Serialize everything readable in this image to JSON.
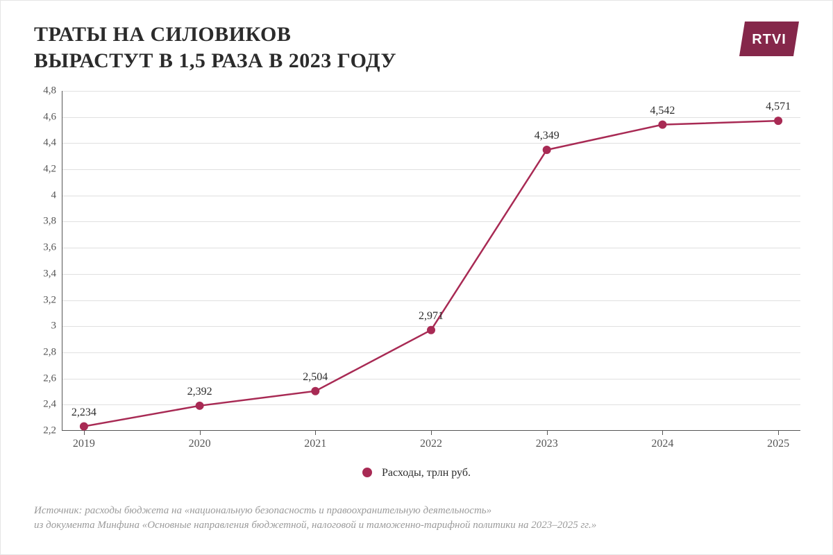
{
  "title_line1": "ТРАТЫ НА СИЛОВИКОВ",
  "title_line2": "ВЫРАСТУТ В 1,5 РАЗА В 2023 ГОДУ",
  "logo_text": "RTVI",
  "legend_label": "Расходы, трлн руб.",
  "source_line1": "Источник: расходы бюджета на «национальную безопасность и правоохранительную деятельность»",
  "source_line2": "из документа Минфина «Основные направления бюджетной, налоговой и таможенно-тарифной политики на 2023–2025 гг.»",
  "chart": {
    "type": "line",
    "categories": [
      "2019",
      "2020",
      "2021",
      "2022",
      "2023",
      "2024",
      "2025"
    ],
    "values": [
      2.234,
      2.392,
      2.504,
      2.971,
      4.349,
      4.542,
      4.571
    ],
    "value_labels": [
      "2,234",
      "2,392",
      "2,504",
      "2,971",
      "4,349",
      "4,542",
      "4,571"
    ],
    "ylim": [
      2.2,
      4.8
    ],
    "ytick_step": 0.2,
    "ytick_labels": [
      "2,2",
      "2,4",
      "2,6",
      "2,8",
      "3",
      "3,2",
      "3,4",
      "3,6",
      "3,8",
      "4",
      "4,2",
      "4,4",
      "4,6",
      "4,8"
    ],
    "line_color": "#a82a54",
    "marker_color": "#a82a54",
    "line_width": 2.5,
    "marker_radius": 6,
    "grid_color": "#e0e0e0",
    "axis_color": "#555555",
    "background_color": "#ffffff",
    "title_color": "#2b2b2b",
    "label_fontsize": 16,
    "tick_fontsize": 15,
    "logo_bg": "#85274a",
    "logo_text_color": "#ffffff",
    "source_color": "#9a9a9a"
  }
}
